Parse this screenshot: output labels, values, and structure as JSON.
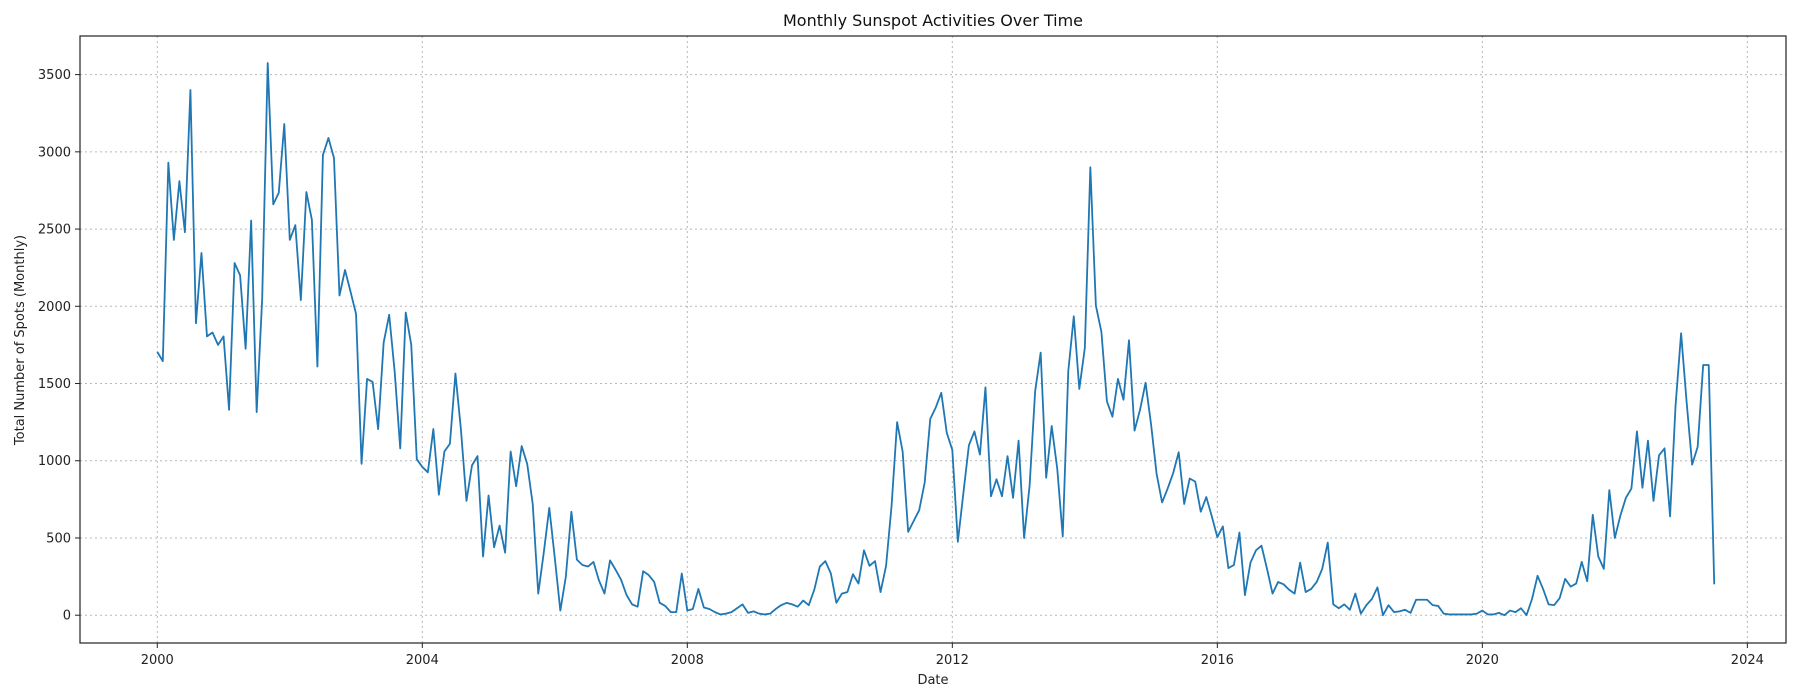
{
  "chart_data": {
    "type": "line",
    "title": "Monthly Sunspot Activities Over Time",
    "xlabel": "Date",
    "ylabel": "Total Number of Spots (Monthly)",
    "x_ticks": [
      {
        "year": 2000,
        "label": "2000"
      },
      {
        "year": 2004,
        "label": "2004"
      },
      {
        "year": 2008,
        "label": "2008"
      },
      {
        "year": 2012,
        "label": "2012"
      },
      {
        "year": 2016,
        "label": "2016"
      },
      {
        "year": 2020,
        "label": "2020"
      },
      {
        "year": 2024,
        "label": "2024"
      }
    ],
    "y_ticks": [
      0,
      500,
      1000,
      1500,
      2000,
      2500,
      3000,
      3500
    ],
    "xlim": [
      "1998-11",
      "2024-08"
    ],
    "ylim": [
      -180,
      3750
    ],
    "grid": true,
    "colors": {
      "series": "#1f77b4"
    },
    "series": [
      {
        "start": "2000-01",
        "frequency": "monthly",
        "values": [
          1705,
          1645,
          2930,
          2430,
          2810,
          2480,
          3400,
          1890,
          2345,
          1805,
          1830,
          1750,
          1805,
          1330,
          2280,
          2200,
          1725,
          2555,
          1315,
          2050,
          3575,
          2660,
          2735,
          3180,
          2430,
          2525,
          2040,
          2740,
          2560,
          1610,
          2980,
          3090,
          2960,
          2070,
          2235,
          2095,
          1950,
          980,
          1530,
          1510,
          1205,
          1765,
          1945,
          1575,
          1080,
          1960,
          1750,
          1010,
          960,
          925,
          1205,
          780,
          1060,
          1110,
          1565,
          1200,
          740,
          970,
          1030,
          380,
          775,
          440,
          580,
          405,
          1060,
          835,
          1095,
          980,
          720,
          140,
          405,
          695,
          370,
          30,
          250,
          670,
          360,
          325,
          315,
          345,
          225,
          140,
          355,
          295,
          230,
          130,
          70,
          55,
          285,
          260,
          215,
          80,
          60,
          20,
          20,
          270,
          30,
          40,
          170,
          50,
          40,
          20,
          5,
          10,
          20,
          45,
          70,
          15,
          25,
          10,
          5,
          10,
          40,
          65,
          80,
          70,
          55,
          95,
          65,
          165,
          315,
          350,
          270,
          80,
          140,
          150,
          265,
          205,
          420,
          320,
          350,
          150,
          320,
          710,
          1250,
          1060,
          540,
          610,
          680,
          860,
          1270,
          1345,
          1440,
          1180,
          1070,
          475,
          790,
          1100,
          1190,
          1040,
          1475,
          770,
          880,
          770,
          1030,
          760,
          1130,
          500,
          840,
          1450,
          1700,
          890,
          1225,
          950,
          510,
          1580,
          1935,
          1465,
          1730,
          2900,
          2005,
          1835,
          1385,
          1285,
          1530,
          1395,
          1780,
          1195,
          1330,
          1505,
          1235,
          915,
          730,
          820,
          920,
          1055,
          720,
          885,
          865,
          670,
          765,
          640,
          505,
          575,
          305,
          325,
          535,
          130,
          340,
          420,
          450,
          300,
          140,
          215,
          200,
          165,
          140,
          340,
          150,
          170,
          215,
          300,
          470,
          70,
          45,
          70,
          35,
          140,
          10,
          65,
          105,
          180,
          0,
          65,
          20,
          25,
          35,
          15,
          100,
          100,
          100,
          65,
          60,
          10,
          5,
          5,
          5,
          5,
          5,
          10,
          30,
          5,
          5,
          15,
          0,
          30,
          20,
          45,
          0,
          105,
          255,
          170,
          70,
          65,
          110,
          235,
          185,
          205,
          345,
          220,
          650,
          380,
          300,
          810,
          500,
          645,
          760,
          820,
          1190,
          825,
          1130,
          740,
          1035,
          1080,
          640,
          1360,
          1825,
          1380,
          975,
          1090,
          1620,
          1620,
          200
        ]
      }
    ]
  }
}
